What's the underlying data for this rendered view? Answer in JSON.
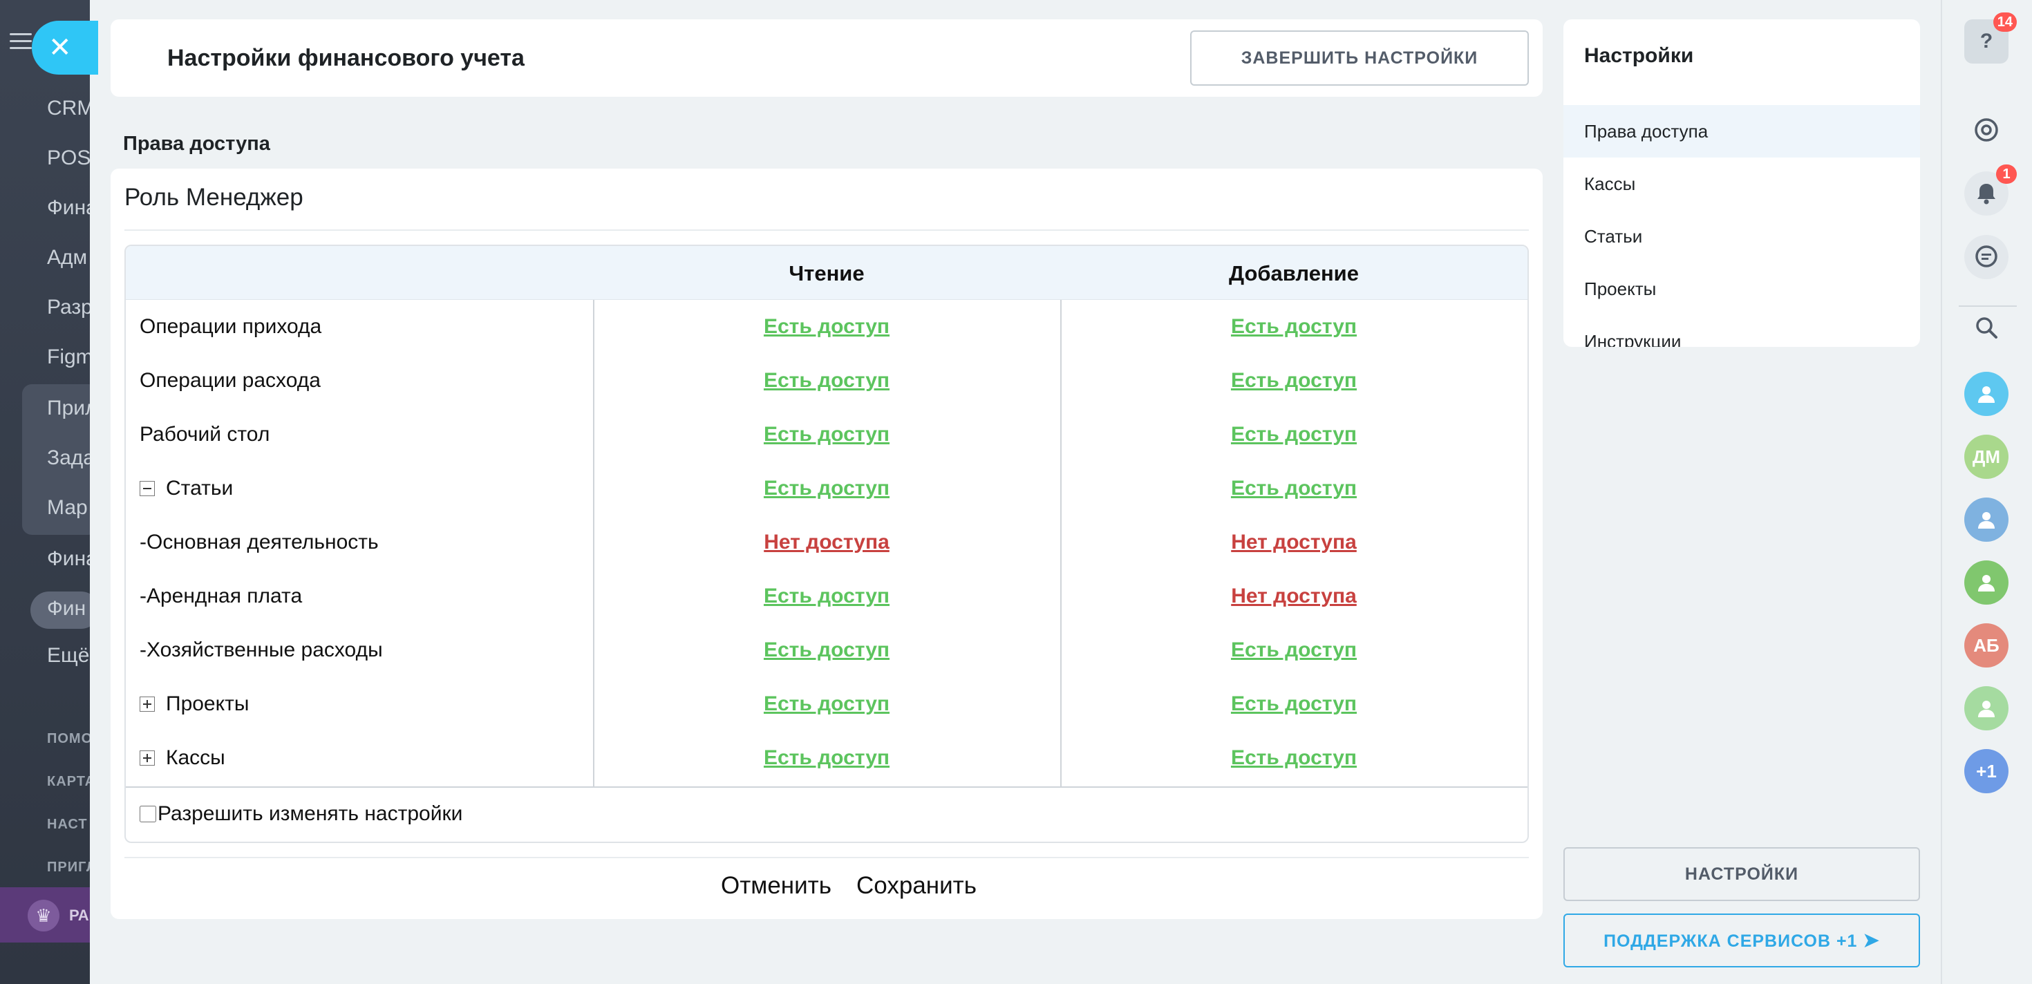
{
  "background_nav": {
    "items": [
      "CRM",
      "POS",
      "Фина",
      "Адм",
      "Разр",
      "Figm",
      "Прил",
      "Зада",
      "Мар",
      "Фина",
      "Фин",
      "Ещё"
    ],
    "small_items": [
      "ПОМО",
      "КАРТА",
      "НАСТ",
      "ПРИГЛ"
    ],
    "bottom_label": "РА"
  },
  "close": {
    "glyph": "✕"
  },
  "header": {
    "title": "Настройки финансового учета",
    "finish_button": "ЗАВЕРШИТЬ НАСТРОЙКИ"
  },
  "section_label": "Права доступа",
  "role": {
    "title": "Роль Менеджер",
    "columns": {
      "read": "Чтение",
      "add": "Добавление"
    },
    "rows": [
      {
        "name": "Операции прихода",
        "toggle": "",
        "read": "Есть доступ",
        "read_ok": true,
        "add": "Есть доступ",
        "add_ok": true
      },
      {
        "name": "Операции расхода",
        "toggle": "",
        "read": "Есть доступ",
        "read_ok": true,
        "add": "Есть доступ",
        "add_ok": true
      },
      {
        "name": "Рабочий стол",
        "toggle": "",
        "read": "Есть доступ",
        "read_ok": true,
        "add": "Есть доступ",
        "add_ok": true
      },
      {
        "name": "Статьи",
        "toggle": "minus",
        "read": "Есть доступ",
        "read_ok": true,
        "add": "Есть доступ",
        "add_ok": true
      },
      {
        "name": "-Основная деятельность",
        "toggle": "",
        "read": "Нет доступа",
        "read_ok": false,
        "add": "Нет доступа",
        "add_ok": false
      },
      {
        "name": "-Арендная плата",
        "toggle": "",
        "read": "Есть доступ",
        "read_ok": true,
        "add": "Нет доступа",
        "add_ok": false
      },
      {
        "name": "-Хозяйственные расходы",
        "toggle": "",
        "read": "Есть доступ",
        "read_ok": true,
        "add": "Есть доступ",
        "add_ok": true
      },
      {
        "name": "Проекты",
        "toggle": "plus",
        "read": "Есть доступ",
        "read_ok": true,
        "add": "Есть доступ",
        "add_ok": true
      },
      {
        "name": "Кассы",
        "toggle": "plus",
        "read": "Есть доступ",
        "read_ok": true,
        "add": "Есть доступ",
        "add_ok": true
      }
    ],
    "allow_edit_label": "Разрешить изменять настройки",
    "allow_edit_checked": false
  },
  "footer": {
    "cancel": "Отменить",
    "save": "Сохранить"
  },
  "settings_menu": {
    "title": "Настройки",
    "items": [
      "Права доступа",
      "Кассы",
      "Статьи",
      "Проекты",
      "Инструкции"
    ],
    "active_index": 0
  },
  "bottom_buttons": {
    "settings": "НАСТРОЙКИ",
    "support": "ПОДДЕРЖКА СЕРВИСОВ +1"
  },
  "rail": {
    "help_badge": "14",
    "notifications_badge": "1",
    "avatars": [
      {
        "icon": "chat-bubbles-icon",
        "initials": "",
        "color": "#5ec8f0"
      },
      {
        "icon": "user-initials-avatar",
        "initials": "ДМ",
        "color": "#a9d88c"
      },
      {
        "icon": "group-users-icon",
        "initials": "",
        "color": "#7fb2e0"
      },
      {
        "icon": "group-users-icon",
        "initials": "",
        "color": "#80c76e"
      },
      {
        "icon": "user-initials-avatar",
        "initials": "АБ",
        "color": "#e48a7c"
      },
      {
        "icon": "document-icon",
        "initials": "",
        "color": "#a5dba0"
      },
      {
        "icon": "more-count-avatar",
        "initials": "+1",
        "color": "#6e9be6"
      }
    ]
  },
  "colors": {
    "access_ok": "#5cc45e",
    "access_denied": "#c8413f",
    "accent": "#2fc6f6",
    "support": "#2fa8e6"
  }
}
